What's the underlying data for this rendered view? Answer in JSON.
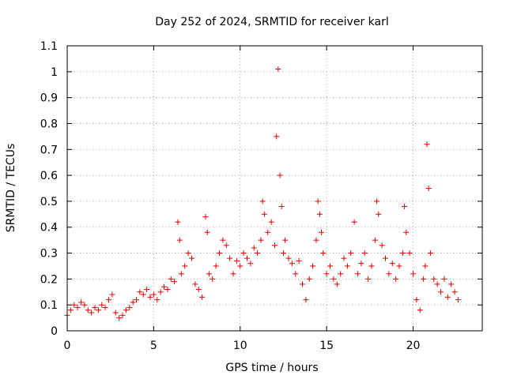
{
  "chart_data": {
    "type": "scatter",
    "title": "Day 252 of 2024, SRMTID for receiver karl",
    "xlabel": "GPS time / hours",
    "ylabel": "SRMTID / TECUs",
    "xlim": [
      0,
      24
    ],
    "ylim": [
      0,
      1.1
    ],
    "xticks": [
      0,
      5,
      10,
      15,
      20
    ],
    "xtick_labels": [
      "0",
      "5",
      "10",
      "15",
      "20"
    ],
    "yticks": [
      0,
      0.1,
      0.2,
      0.3,
      0.4,
      0.5,
      0.6,
      0.7,
      0.8,
      0.9,
      1,
      1.1
    ],
    "ytick_labels": [
      "0",
      "0.1",
      "0.2",
      "0.3",
      "0.4",
      "0.5",
      "0.6",
      "0.7",
      "0.8",
      "0.9",
      "1",
      "1.1"
    ],
    "grid": true,
    "marker": "+",
    "marker_color": "#e00000",
    "series": [
      {
        "name": "SRMTID",
        "x": [
          0.0,
          0.2,
          0.4,
          0.6,
          0.8,
          1.0,
          1.2,
          1.4,
          1.6,
          1.8,
          2.0,
          2.2,
          2.4,
          2.6,
          2.8,
          3.0,
          3.2,
          3.4,
          3.6,
          3.8,
          4.0,
          4.2,
          4.4,
          4.6,
          4.8,
          5.0,
          5.2,
          5.4,
          5.6,
          5.8,
          6.0,
          6.2,
          6.4,
          6.5,
          6.6,
          6.8,
          7.0,
          7.2,
          7.4,
          7.6,
          7.8,
          8.0,
          8.1,
          8.2,
          8.4,
          8.6,
          8.8,
          9.0,
          9.2,
          9.4,
          9.6,
          9.8,
          10.0,
          10.2,
          10.4,
          10.6,
          10.8,
          11.0,
          11.2,
          11.3,
          11.4,
          11.6,
          11.8,
          12.0,
          12.1,
          12.2,
          12.3,
          12.4,
          12.5,
          12.6,
          12.8,
          13.0,
          13.2,
          13.4,
          13.6,
          13.8,
          14.0,
          14.2,
          14.4,
          14.5,
          14.6,
          14.7,
          14.8,
          15.0,
          15.2,
          15.4,
          15.6,
          15.8,
          16.0,
          16.2,
          16.4,
          16.6,
          16.8,
          17.0,
          17.2,
          17.4,
          17.6,
          17.8,
          17.9,
          18.0,
          18.2,
          18.4,
          18.6,
          18.8,
          19.0,
          19.2,
          19.4,
          19.5,
          19.6,
          19.8,
          20.0,
          20.2,
          20.4,
          20.6,
          20.7,
          20.8,
          20.9,
          21.0,
          21.2,
          21.4,
          21.6,
          21.8,
          22.0,
          22.2,
          22.4,
          22.6
        ],
        "y": [
          0.06,
          0.08,
          0.1,
          0.09,
          0.11,
          0.1,
          0.08,
          0.07,
          0.09,
          0.08,
          0.1,
          0.09,
          0.12,
          0.14,
          0.07,
          0.05,
          0.06,
          0.08,
          0.09,
          0.11,
          0.12,
          0.15,
          0.14,
          0.16,
          0.13,
          0.14,
          0.12,
          0.15,
          0.17,
          0.16,
          0.2,
          0.19,
          0.42,
          0.35,
          0.22,
          0.25,
          0.3,
          0.28,
          0.18,
          0.16,
          0.13,
          0.44,
          0.38,
          0.22,
          0.2,
          0.25,
          0.3,
          0.35,
          0.33,
          0.28,
          0.22,
          0.27,
          0.25,
          0.3,
          0.28,
          0.26,
          0.32,
          0.3,
          0.35,
          0.5,
          0.45,
          0.38,
          0.42,
          0.33,
          0.75,
          1.01,
          0.6,
          0.48,
          0.3,
          0.35,
          0.28,
          0.26,
          0.22,
          0.27,
          0.18,
          0.12,
          0.2,
          0.25,
          0.35,
          0.5,
          0.45,
          0.38,
          0.3,
          0.22,
          0.25,
          0.2,
          0.18,
          0.22,
          0.28,
          0.25,
          0.3,
          0.42,
          0.22,
          0.26,
          0.3,
          0.2,
          0.25,
          0.35,
          0.5,
          0.45,
          0.33,
          0.28,
          0.22,
          0.26,
          0.2,
          0.25,
          0.3,
          0.48,
          0.38,
          0.3,
          0.22,
          0.12,
          0.08,
          0.2,
          0.25,
          0.72,
          0.55,
          0.3,
          0.2,
          0.18,
          0.15,
          0.2,
          0.13,
          0.18,
          0.15,
          0.12
        ]
      }
    ]
  }
}
